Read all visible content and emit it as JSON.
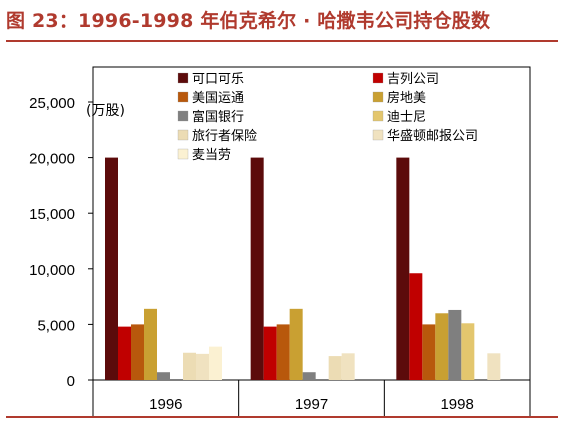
{
  "header": {
    "title": "图 23：1996-1998 年伯克希尔 · 哈撒韦公司持仓股数"
  },
  "chart_data": {
    "type": "bar",
    "title": "",
    "xlabel": "",
    "ylabel": "",
    "unit_label": "(万股)",
    "categories": [
      "1996",
      "1997",
      "1998"
    ],
    "ylim": [
      0,
      25000
    ],
    "yticks": [
      "0",
      "5,000",
      "10,000",
      "15,000",
      "20,000",
      "25,000"
    ],
    "yticks_values": [
      0,
      5000,
      10000,
      15000,
      20000,
      25000
    ],
    "grid": false,
    "legend_position": "top",
    "series": [
      {
        "name": "可口可乐",
        "color": "#5c0b0b",
        "values": [
          20000,
          20000,
          20000
        ]
      },
      {
        "name": "吉列公司",
        "color": "#c00000",
        "values": [
          4800,
          4800,
          9600
        ]
      },
      {
        "name": "美国运通",
        "color": "#b8580c",
        "values": [
          5000,
          5000,
          5000
        ]
      },
      {
        "name": "房地美",
        "color": "#c9a032",
        "values": [
          6400,
          6400,
          6000
        ]
      },
      {
        "name": "富国银行",
        "color": "#7f7f7f",
        "values": [
          700,
          700,
          6300
        ]
      },
      {
        "name": "迪士尼",
        "color": "#e3c66e",
        "values": [
          0,
          0,
          5100
        ]
      },
      {
        "name": "旅行者保险",
        "color": "#ecdcb4",
        "values": [
          2450,
          2150,
          0
        ]
      },
      {
        "name": "华盛顿邮报公司",
        "color": "#f0e2c0",
        "values": [
          2350,
          2400,
          2400
        ]
      },
      {
        "name": "麦当劳",
        "color": "#fbf1d2",
        "values": [
          3000,
          0,
          0
        ]
      }
    ]
  }
}
